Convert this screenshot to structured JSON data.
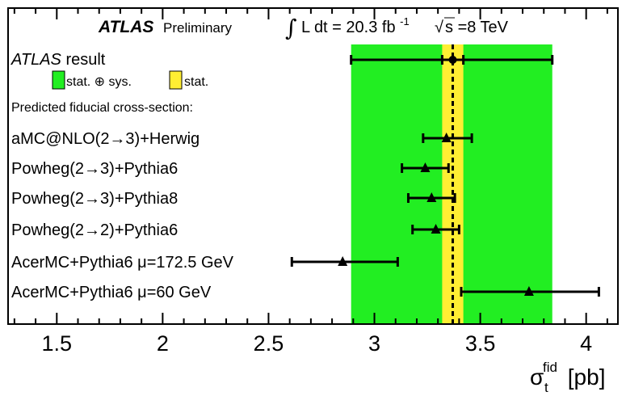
{
  "header": {
    "experiment": "ATLAS",
    "status": "Preliminary",
    "lumi_prefix": "L dt = 20.3 fb",
    "lumi_exp": "-1",
    "energy_root": "s",
    "energy_value": "=8 TeV"
  },
  "measurement": {
    "label_italic": "ATLAS",
    "label_rest": " result",
    "legend_total": "stat. ⊕ sys.",
    "legend_stat": "stat.",
    "predicted_heading": "Predicted fiducial cross-section:"
  },
  "axis": {
    "xlabel_main": "σ",
    "xlabel_sub": "t",
    "xlabel_sup": "fid",
    "xlabel_unit": " [pb]"
  },
  "colors": {
    "total_band": "#22ee22",
    "stat_band": "#ffee33",
    "marker": "#000000"
  },
  "chart_data": {
    "type": "scatter",
    "title": "",
    "xlim": [
      1.27,
      4.15
    ],
    "xticks": [
      1.5,
      2,
      2.5,
      3,
      3.5,
      4
    ],
    "xtick_labels": [
      "1.5",
      "2",
      "2.5",
      "3",
      "3.5",
      "4"
    ],
    "measurement": {
      "name": "ATLAS result",
      "value": 3.37,
      "total_error_band": [
        2.89,
        3.84
      ],
      "stat_error_band": [
        3.32,
        3.42
      ]
    },
    "series": [
      {
        "name": "aMC@NLO(2→3)+Herwig",
        "value": 3.34,
        "err_low": 3.23,
        "err_high": 3.46
      },
      {
        "name": "Powheg(2→3)+Pythia6",
        "value": 3.24,
        "err_low": 3.13,
        "err_high": 3.35
      },
      {
        "name": "Powheg(2→3)+Pythia8",
        "value": 3.27,
        "err_low": 3.16,
        "err_high": 3.38
      },
      {
        "name": "Powheg(2→2)+Pythia6",
        "value": 3.29,
        "err_low": 3.18,
        "err_high": 3.4
      },
      {
        "name": "AcerMC+Pythia6 μ=172.5 GeV",
        "value": 2.85,
        "err_low": 2.61,
        "err_high": 3.11
      },
      {
        "name": "AcerMC+Pythia6 μ=60 GeV",
        "value": 3.73,
        "err_low": 3.41,
        "err_high": 4.06
      }
    ]
  }
}
